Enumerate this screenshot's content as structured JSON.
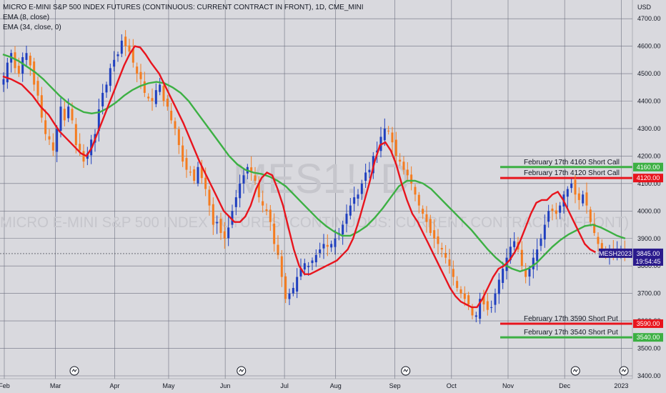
{
  "legend": {
    "title": "MICRO E-MINI S&P 500 INDEX FUTURES (CONTINUOUS: CURRENT CONTRACT IN FRONT), 1D, CME_MINI",
    "ema8": "EMA (8, close)",
    "ema34": "EMA (34, close, 0)"
  },
  "watermark": {
    "symbol": "MES1!, D",
    "name": "MICRO E-MINI S&P 500 INDEX FUTURES (CONTINUOUS: CURRENT CONTRACT IN FRONT)"
  },
  "chart_data": {
    "type": "candlestick",
    "y_axis_label": "USD",
    "ylim": [
      3400,
      4800
    ],
    "yticks": [
      "3400.00",
      "3500.00",
      "3600.00",
      "3700.00",
      "3800.00",
      "3900.00",
      "4000.00",
      "4100.00",
      "4200.00",
      "4300.00",
      "4400.00",
      "4500.00",
      "4600.00",
      "4700.00"
    ],
    "xticks": [
      {
        "label": "Feb",
        "day": 0
      },
      {
        "label": "Mar",
        "day": 19
      },
      {
        "label": "Apr",
        "day": 41
      },
      {
        "label": "May",
        "day": 61
      },
      {
        "label": "Jun",
        "day": 82
      },
      {
        "label": "Jul",
        "day": 104
      },
      {
        "label": "Aug",
        "day": 123
      },
      {
        "label": "Sep",
        "day": 145
      },
      {
        "label": "Oct",
        "day": 166
      },
      {
        "label": "Nov",
        "day": 187
      },
      {
        "label": "Dec",
        "day": 208
      },
      {
        "label": "2023",
        "day": 229
      }
    ],
    "colors": {
      "up": "#1f3fbf",
      "down": "#f47c20",
      "ema8": "#e8141d",
      "ema34": "#3cb043"
    },
    "series": [
      {
        "name": "EMA (8, close)",
        "color": "#e8141d"
      },
      {
        "name": "EMA (34, close, 0)",
        "color": "#3cb043"
      }
    ],
    "closes": [
      4480,
      4540,
      4575,
      4520,
      4500,
      4560,
      4575,
      4530,
      4460,
      4420,
      4340,
      4280,
      4260,
      4220,
      4300,
      4380,
      4330,
      4380,
      4330,
      4240,
      4220,
      4180,
      4210,
      4260,
      4280,
      4370,
      4430,
      4460,
      4520,
      4550,
      4570,
      4620,
      4600,
      4580,
      4540,
      4500,
      4480,
      4430,
      4410,
      4400,
      4440,
      4460,
      4400,
      4380,
      4330,
      4300,
      4240,
      4180,
      4150,
      4140,
      4110,
      4160,
      4120,
      4080,
      4020,
      3950,
      3960,
      3920,
      3900,
      3940,
      4000,
      4050,
      4100,
      4130,
      4160,
      4140,
      4110,
      4050,
      4020,
      4000,
      3960,
      3880,
      3840,
      3760,
      3680,
      3700,
      3720,
      3760,
      3790,
      3810,
      3800,
      3820,
      3840,
      3860,
      3880,
      3870,
      3880,
      3900,
      3920,
      3950,
      3990,
      4020,
      4050,
      4060,
      4100,
      4140,
      4150,
      4200,
      4220,
      4270,
      4300,
      4290,
      4250,
      4200,
      4180,
      4150,
      4130,
      4100,
      4060,
      4020,
      3990,
      3960,
      3920,
      3900,
      3880,
      3860,
      3830,
      3800,
      3760,
      3720,
      3700,
      3680,
      3660,
      3620,
      3620,
      3680,
      3660,
      3640,
      3650,
      3700,
      3750,
      3790,
      3830,
      3870,
      3890,
      3860,
      3800,
      3760,
      3790,
      3830,
      3860,
      3900,
      3950,
      4000,
      4000,
      3990,
      4020,
      4060,
      4080,
      4100,
      4060,
      4040,
      4060,
      4020,
      3960,
      3920,
      3880,
      3860,
      3850,
      3850,
      3840,
      3860,
      3860,
      3845
    ],
    "ema8": [
      4490,
      4480,
      4460,
      4420,
      4380,
      4350,
      4320,
      4290,
      4260,
      4230,
      4210,
      4200,
      4230,
      4280,
      4330,
      4380,
      4430,
      4480,
      4530,
      4570,
      4600,
      4595,
      4570,
      4540,
      4500,
      4460,
      4420,
      4380,
      4320,
      4250,
      4180,
      4120,
      4080,
      4040,
      4000,
      3980,
      3960,
      3960,
      3980,
      4020,
      4080,
      4120,
      4140,
      4130,
      4080,
      4020,
      3940,
      3860,
      3800,
      3770,
      3770,
      3780,
      3790,
      3800,
      3810,
      3820,
      3840,
      3860,
      3900,
      3960,
      4030,
      4100,
      4180,
      4240,
      4250,
      4220,
      4170,
      4100,
      4040,
      3990,
      3960,
      3920,
      3880,
      3840,
      3800,
      3760,
      3720,
      3690,
      3670,
      3660,
      3650,
      3650,
      3680,
      3720,
      3760,
      3790,
      3800,
      3820,
      3850,
      3890,
      3940,
      3990,
      4030,
      4040,
      4040,
      4060,
      4070,
      4040,
      4000,
      3960,
      3920,
      3880,
      3860,
      3850
    ],
    "ema8_days": [
      0,
      3,
      7,
      11,
      14,
      17,
      19,
      21,
      24,
      27,
      29,
      31,
      33,
      35,
      37,
      39,
      41,
      43,
      45,
      47,
      49,
      51,
      53,
      55,
      58,
      60,
      62,
      64,
      67,
      70,
      73,
      76,
      78,
      80,
      82,
      84,
      86,
      88,
      90,
      92,
      94,
      96,
      98,
      100,
      102,
      104,
      106,
      108,
      110,
      112,
      114,
      116,
      118,
      120,
      122,
      124,
      126,
      128,
      130,
      132,
      134,
      136,
      138,
      140,
      142,
      144,
      146,
      148,
      150,
      152,
      154,
      156,
      158,
      160,
      162,
      164,
      166,
      168,
      170,
      172,
      174,
      176,
      178,
      180,
      182,
      184,
      186,
      188,
      190,
      192,
      194,
      196,
      198,
      200,
      202,
      204,
      206,
      208,
      210,
      212,
      214,
      216,
      218,
      220
    ],
    "ema34": [
      4570,
      4560,
      4545,
      4525,
      4505,
      4480,
      4450,
      4420,
      4395,
      4375,
      4360,
      4355,
      4360,
      4375,
      4395,
      4420,
      4440,
      4455,
      4465,
      4470,
      4465,
      4450,
      4430,
      4400,
      4360,
      4320,
      4280,
      4240,
      4200,
      4170,
      4150,
      4140,
      4135,
      4125,
      4110,
      4090,
      4060,
      4030,
      4000,
      3970,
      3945,
      3925,
      3910,
      3910,
      3925,
      3945,
      3975,
      4010,
      4050,
      4090,
      4110,
      4110,
      4100,
      4080,
      4050,
      4020,
      3990,
      3960,
      3930,
      3895,
      3860,
      3830,
      3805,
      3790,
      3780,
      3790,
      3810,
      3840,
      3870,
      3895,
      3915,
      3930,
      3945,
      3950,
      3940,
      3925,
      3910,
      3900
    ],
    "ema34_days": [
      0,
      3,
      6,
      9,
      12,
      15,
      18,
      21,
      24,
      27,
      30,
      33,
      36,
      39,
      42,
      45,
      48,
      51,
      54,
      57,
      60,
      63,
      66,
      69,
      72,
      75,
      78,
      81,
      84,
      87,
      90,
      93,
      96,
      99,
      102,
      105,
      108,
      111,
      114,
      117,
      120,
      123,
      126,
      129,
      132,
      135,
      138,
      141,
      144,
      147,
      150,
      153,
      156,
      159,
      162,
      165,
      168,
      171,
      174,
      177,
      180,
      183,
      186,
      189,
      192,
      195,
      198,
      201,
      204,
      207,
      210,
      213,
      216,
      219,
      222,
      225,
      228,
      231
    ],
    "last_price": {
      "label": "MESH2023",
      "value": "3845.00",
      "countdown": "19:54:45",
      "price": 3845
    },
    "levels": [
      {
        "label": "February 17th 4160 Short Call",
        "price": 4160,
        "tag": "4160.00",
        "color": "#3cb043"
      },
      {
        "label": "February 17th 4120 Short Call",
        "price": 4120,
        "tag": "4120.00",
        "color": "#e8141d"
      },
      {
        "label": "February 17th 3590 Short Put",
        "price": 3590,
        "tag": "3590.00",
        "color": "#e8141d"
      },
      {
        "label": "February 17th 3540 Short Put",
        "price": 3540,
        "tag": "3540.00",
        "color": "#3cb043"
      }
    ]
  }
}
